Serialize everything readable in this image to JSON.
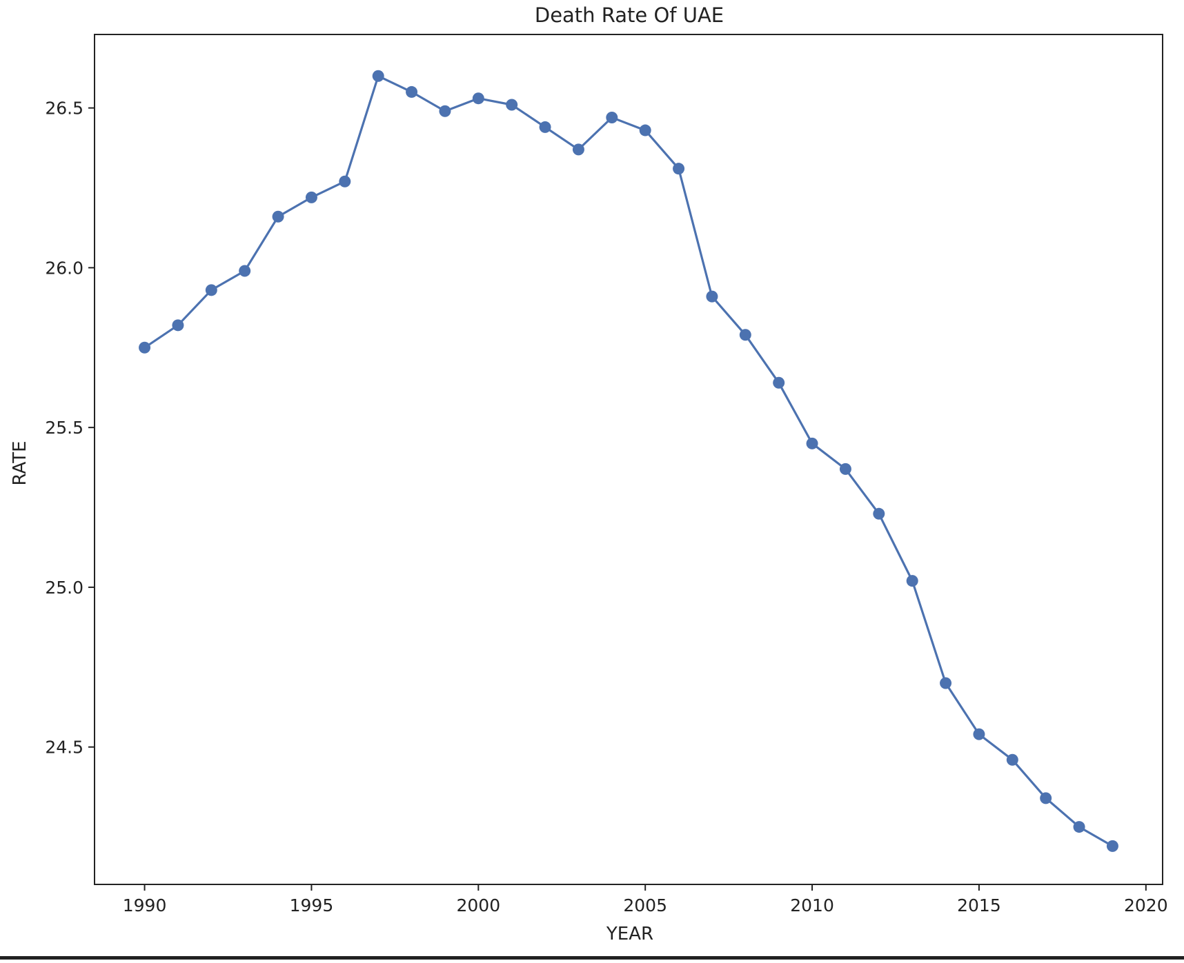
{
  "chart_data": {
    "type": "line",
    "title": "Death Rate Of UAE",
    "xlabel": "YEAR",
    "ylabel": "RATE",
    "xlim": [
      1988.5,
      2020.5
    ],
    "ylim": [
      24.07,
      26.73
    ],
    "xticks": [
      1990,
      1995,
      2000,
      2005,
      2010,
      2015,
      2020
    ],
    "yticks": [
      24.5,
      25.0,
      25.5,
      26.0,
      26.5
    ],
    "ytick_labels": [
      "24.5",
      "25.0",
      "25.5",
      "26.0",
      "26.5"
    ],
    "grid": false,
    "legend": "none",
    "line_color": "#4c72b0",
    "marker": "circle",
    "series": [
      {
        "x": [
          1990,
          1991,
          1992,
          1993,
          1994,
          1995,
          1996,
          1997,
          1998,
          1999,
          2000,
          2001,
          2002,
          2003,
          2004,
          2005,
          2006,
          2007,
          2008,
          2009,
          2010,
          2011,
          2012,
          2013,
          2014,
          2015,
          2016,
          2017,
          2018,
          2019
        ],
        "y": [
          25.75,
          25.82,
          25.93,
          25.99,
          26.16,
          26.22,
          26.27,
          26.6,
          26.55,
          26.49,
          26.53,
          26.51,
          26.44,
          26.37,
          26.47,
          26.43,
          26.31,
          25.91,
          25.79,
          25.64,
          25.45,
          25.37,
          25.23,
          25.02,
          24.7,
          24.54,
          24.46,
          24.34,
          24.25,
          24.19
        ]
      }
    ]
  }
}
